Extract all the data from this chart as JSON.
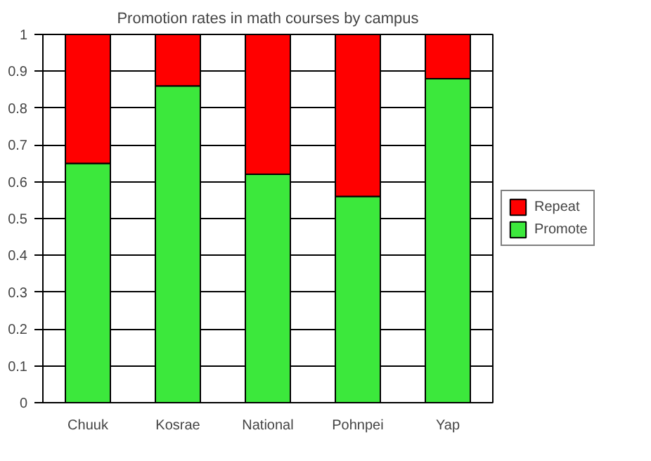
{
  "chart_data": {
    "type": "bar",
    "title": "Promotion rates in math courses by campus",
    "categories": [
      "Chuuk",
      "Kosrae",
      "National",
      "Pohnpei",
      "Yap"
    ],
    "stacked": true,
    "series": [
      {
        "name": "Promote",
        "color": "#3ce83c",
        "values": [
          0.65,
          0.86,
          0.62,
          0.56,
          0.88
        ]
      },
      {
        "name": "Repeat",
        "color": "#ff0000",
        "values": [
          0.35,
          0.14,
          0.38,
          0.44,
          0.12
        ]
      }
    ],
    "ylim": [
      0,
      1
    ],
    "yticks": [
      0,
      0.1,
      0.2,
      0.3,
      0.4,
      0.5,
      0.6,
      0.7,
      0.8,
      0.9,
      1
    ],
    "grid": "y",
    "legend": "right"
  }
}
